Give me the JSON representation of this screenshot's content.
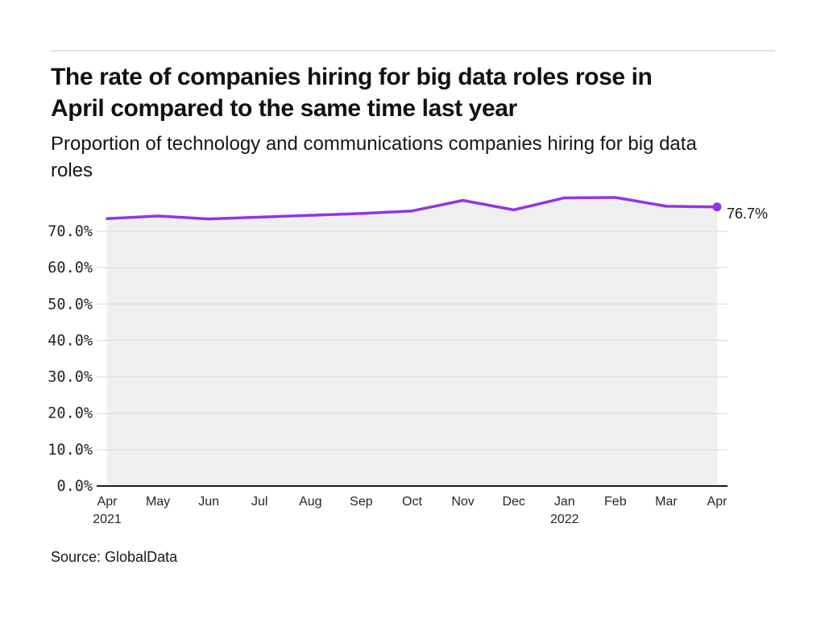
{
  "header": {
    "title": "The rate of companies hiring for big data roles rose in\nApril compared to the same time last year",
    "subtitle": "Proportion of technology and communications companies hiring for big data\nroles"
  },
  "chart_data": {
    "type": "line",
    "categories": [
      "Apr",
      "May",
      "Jun",
      "Jul",
      "Aug",
      "Sep",
      "Oct",
      "Nov",
      "Dec",
      "Jan",
      "Feb",
      "Mar",
      "Apr"
    ],
    "year_marks": [
      {
        "index": 0,
        "label": "2021"
      },
      {
        "index": 9,
        "label": "2022"
      }
    ],
    "series": [
      {
        "name": "Proportion of companies hiring for big data roles",
        "values": [
          73.5,
          74.2,
          73.4,
          73.9,
          74.4,
          74.9,
          75.6,
          78.5,
          75.9,
          79.2,
          79.3,
          76.9,
          76.7
        ]
      }
    ],
    "end_label": "76.7%",
    "y_ticks": [
      "0.0%",
      "10.0%",
      "20.0%",
      "30.0%",
      "40.0%",
      "50.0%",
      "60.0%",
      "70.0%"
    ],
    "ylim": [
      0,
      70
    ],
    "grid": true,
    "legend": "none",
    "colors": {
      "line": "#9333ea",
      "area": "#efefef",
      "grid": "#e2e2e2",
      "axis": "#1a1a1a",
      "text": "#161616"
    }
  },
  "footer": {
    "source": "Source: GlobalData"
  }
}
